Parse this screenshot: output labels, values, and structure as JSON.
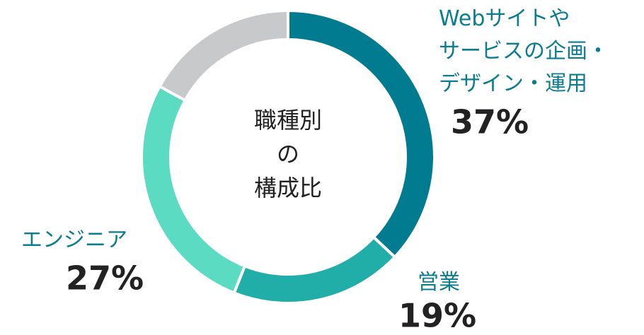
{
  "chart_data": {
    "type": "donut",
    "center_label": "職種別\nの\n構成比",
    "categories": [
      "Webサイトや\nサービスの企画・\nデザイン・運用",
      "営業",
      "エンジニア",
      null
    ],
    "values": [
      37,
      19,
      27,
      17
    ],
    "value_labels": [
      "37%",
      "19%",
      "27%",
      null
    ],
    "colors": [
      "#007b8f",
      "#22aea8",
      "#5adbc2",
      "#c8c9cb"
    ]
  }
}
